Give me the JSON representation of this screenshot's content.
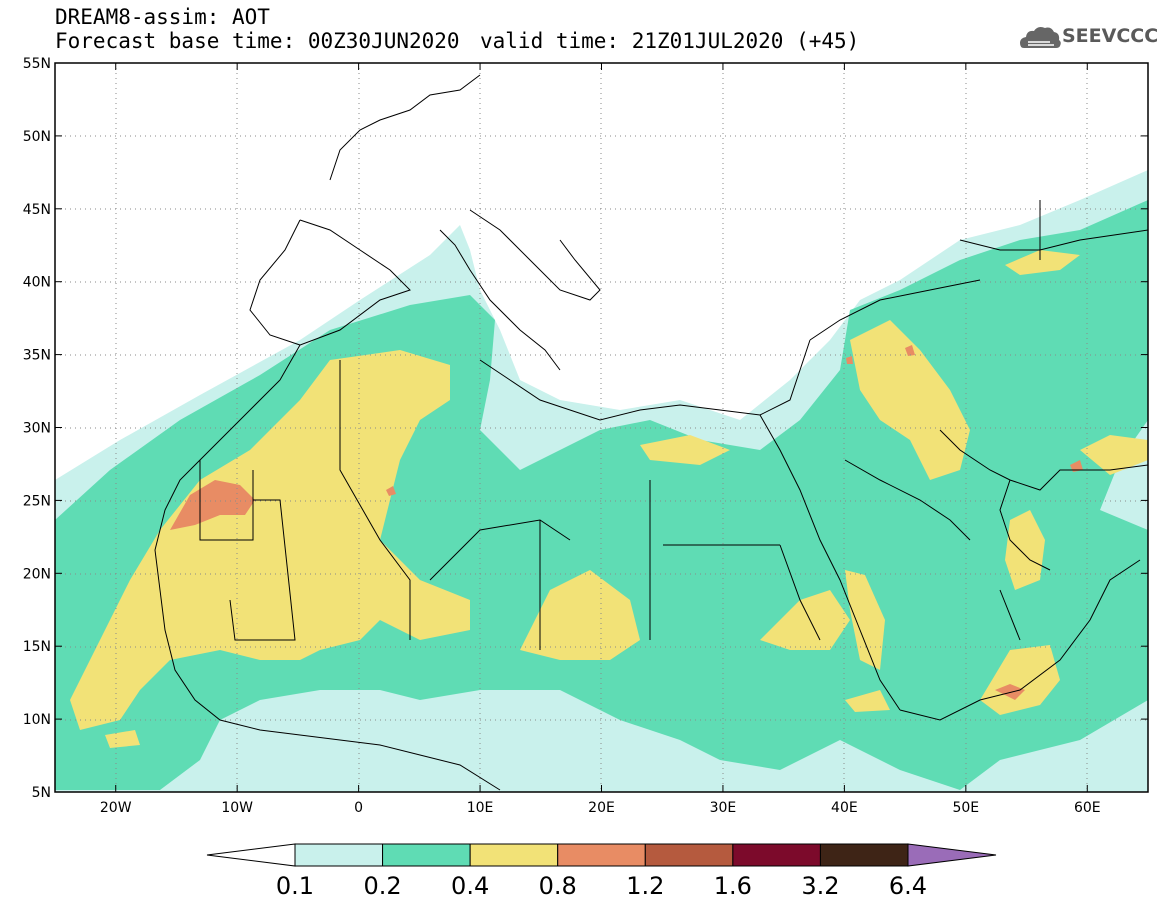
{
  "header": {
    "line1": "DREAM8-assim: AOT",
    "base_time": "Forecast base time: 00Z30JUN2020",
    "valid_time": "valid time: 21Z01JUL2020 (+45)",
    "logo_text": "SEEVCCC",
    "logo_icon": "cloud-icon"
  },
  "map": {
    "lat_labels": [
      "55N",
      "50N",
      "45N",
      "40N",
      "35N",
      "30N",
      "25N",
      "20N",
      "15N",
      "10N",
      "5N"
    ],
    "lon_labels": [
      "20W",
      "10W",
      "0",
      "10E",
      "20E",
      "30E",
      "40E",
      "50E",
      "60E"
    ],
    "lon_range": [
      -25,
      65
    ],
    "lat_range": [
      5,
      55
    ],
    "grid": "dotted"
  },
  "colorbar": {
    "labels": [
      "0.1",
      "0.2",
      "0.4",
      "0.8",
      "1.2",
      "1.6",
      "3.2",
      "6.4"
    ],
    "colors": [
      "#ffffff",
      "#c9f1ec",
      "#5fdcb4",
      "#f2e277",
      "#e88c64",
      "#b55a3e",
      "#7c0a2b",
      "#3e2416",
      "#9a6cb8"
    ]
  }
}
